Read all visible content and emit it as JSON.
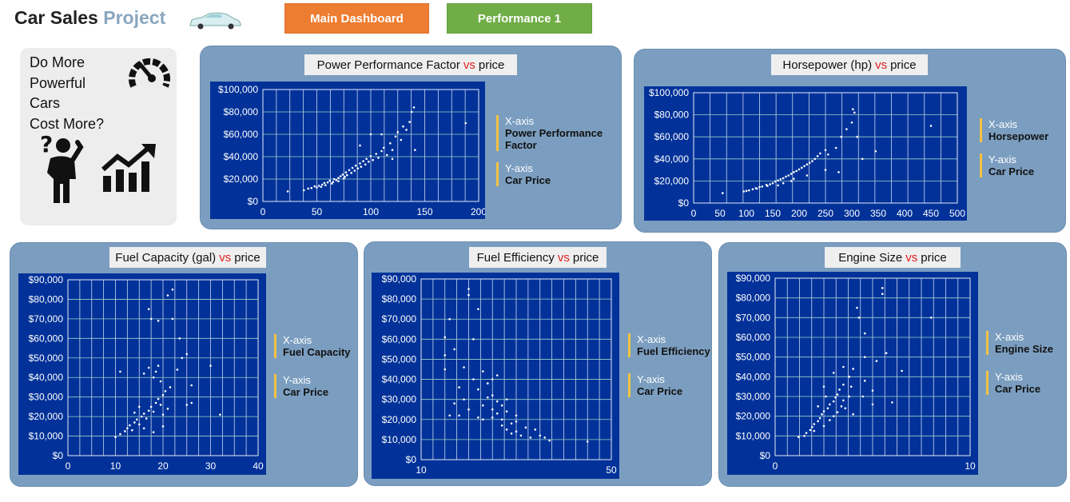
{
  "header": {
    "title_part1": "Car Sales",
    "title_part2": "Project",
    "car_icon": "car-icon",
    "nav": [
      {
        "label": "Main Dashboard",
        "color": "#ed7d31"
      },
      {
        "label": "Performance 1",
        "color": "#70ad47"
      }
    ]
  },
  "question": {
    "lines": [
      "Do More",
      "Powerful Cars",
      "Cost More?"
    ],
    "icons": [
      "speedometer-icon",
      "confused-person-icon",
      "growth-chart-icon"
    ]
  },
  "legend_labels": {
    "x": "X-axis",
    "y": "Y-axis",
    "y_value": "Car Price"
  },
  "charts": [
    {
      "title_left": "Power Performance Factor",
      "vs": "vs",
      "title_right": "price",
      "x_value": "Power Performance Factor"
    },
    {
      "title_left": "Horsepower (hp)",
      "vs": "vs",
      "title_right": "price",
      "x_value": "Horsepower"
    },
    {
      "title_left": "Fuel Capacity (gal)",
      "vs": "vs",
      "title_right": "price",
      "x_value": "Fuel Capacity"
    },
    {
      "title_left": "Fuel Efficiency",
      "vs": "vs",
      "title_right": "price",
      "x_value": "Fuel Efficiency"
    },
    {
      "title_left": "Engine Size",
      "vs": "vs",
      "title_right": "price",
      "x_value": "Engine Size"
    }
  ],
  "chart_data": [
    {
      "type": "scatter",
      "title": "Power Performance Factor vs price",
      "xlim": [
        0,
        200
      ],
      "ylim": [
        0,
        100000
      ],
      "x_ticks": [
        0,
        50,
        100,
        150,
        200
      ],
      "y_ticks": [
        0,
        20000,
        40000,
        60000,
        80000,
        100000
      ],
      "y_tick_labels": [
        "$0",
        "$20,000",
        "$40,000",
        "$60,000",
        "$80,000",
        "$100,000"
      ],
      "grid": true,
      "points": [
        [
          23,
          9000
        ],
        [
          38,
          10000
        ],
        [
          42,
          11500
        ],
        [
          45,
          12000
        ],
        [
          48,
          13500
        ],
        [
          50,
          12500
        ],
        [
          52,
          14000
        ],
        [
          55,
          15000
        ],
        [
          57,
          16500
        ],
        [
          60,
          17000
        ],
        [
          62,
          18500
        ],
        [
          65,
          17500
        ],
        [
          66,
          20000
        ],
        [
          68,
          19000
        ],
        [
          70,
          21000
        ],
        [
          72,
          22500
        ],
        [
          74,
          24000
        ],
        [
          75,
          20500
        ],
        [
          77,
          26000
        ],
        [
          78,
          23500
        ],
        [
          80,
          28000
        ],
        [
          82,
          25500
        ],
        [
          83,
          30000
        ],
        [
          85,
          27500
        ],
        [
          86,
          32000
        ],
        [
          88,
          29500
        ],
        [
          90,
          34000
        ],
        [
          91,
          31000
        ],
        [
          93,
          36000
        ],
        [
          95,
          33000
        ],
        [
          96,
          38000
        ],
        [
          98,
          35500
        ],
        [
          100,
          40500
        ],
        [
          102,
          37000
        ],
        [
          105,
          42500
        ],
        [
          107,
          39000
        ],
        [
          110,
          45000
        ],
        [
          112,
          48000
        ],
        [
          115,
          41500
        ],
        [
          118,
          52000
        ],
        [
          120,
          46000
        ],
        [
          123,
          58000
        ],
        [
          125,
          62000
        ],
        [
          128,
          55000
        ],
        [
          130,
          67000
        ],
        [
          133,
          64000
        ],
        [
          136,
          71000
        ],
        [
          138,
          80000
        ],
        [
          140,
          84000
        ],
        [
          141,
          46000
        ],
        [
          188,
          70000
        ],
        [
          100,
          60000
        ],
        [
          110,
          60000
        ],
        [
          90,
          50000
        ],
        [
          120,
          38000
        ],
        [
          76,
          22000
        ],
        [
          70,
          18000
        ],
        [
          64,
          16000
        ],
        [
          58,
          14500
        ],
        [
          54,
          13000
        ]
      ]
    },
    {
      "type": "scatter",
      "title": "Horsepower (hp) vs price",
      "xlim": [
        0,
        500
      ],
      "ylim": [
        0,
        100000
      ],
      "x_ticks": [
        0,
        50,
        100,
        150,
        200,
        250,
        300,
        350,
        400,
        450,
        500
      ],
      "y_ticks": [
        0,
        20000,
        40000,
        60000,
        80000,
        100000
      ],
      "y_tick_labels": [
        "$0",
        "$20,000",
        "$40,000",
        "$60,000",
        "$80,000",
        "$100,000"
      ],
      "grid": true,
      "points": [
        [
          55,
          9000
        ],
        [
          95,
          10500
        ],
        [
          105,
          11500
        ],
        [
          112,
          12500
        ],
        [
          118,
          13500
        ],
        [
          125,
          14500
        ],
        [
          130,
          15000
        ],
        [
          138,
          16500
        ],
        [
          145,
          17000
        ],
        [
          150,
          18000
        ],
        [
          155,
          19500
        ],
        [
          160,
          20500
        ],
        [
          165,
          21500
        ],
        [
          170,
          22500
        ],
        [
          175,
          24000
        ],
        [
          180,
          25000
        ],
        [
          185,
          26500
        ],
        [
          190,
          28000
        ],
        [
          195,
          29000
        ],
        [
          200,
          30500
        ],
        [
          205,
          32000
        ],
        [
          210,
          33500
        ],
        [
          215,
          35000
        ],
        [
          220,
          36500
        ],
        [
          225,
          38000
        ],
        [
          230,
          40000
        ],
        [
          235,
          42500
        ],
        [
          240,
          45000
        ],
        [
          250,
          48000
        ],
        [
          255,
          44000
        ],
        [
          270,
          50000
        ],
        [
          280,
          60000
        ],
        [
          290,
          67000
        ],
        [
          300,
          73000
        ],
        [
          302,
          85000
        ],
        [
          305,
          82000
        ],
        [
          310,
          60000
        ],
        [
          320,
          40000
        ],
        [
          345,
          47000
        ],
        [
          450,
          70000
        ],
        [
          275,
          28000
        ],
        [
          250,
          30000
        ],
        [
          215,
          25000
        ],
        [
          190,
          22000
        ],
        [
          170,
          18000
        ],
        [
          140,
          15500
        ],
        [
          120,
          13000
        ],
        [
          100,
          11000
        ],
        [
          160,
          16000
        ],
        [
          185,
          20000
        ]
      ]
    },
    {
      "type": "scatter",
      "title": "Fuel Capacity (gal) vs price",
      "xlim": [
        0,
        40
      ],
      "ylim": [
        0,
        90000
      ],
      "x_ticks": [
        0,
        10,
        20,
        30,
        40
      ],
      "y_ticks": [
        0,
        10000,
        20000,
        30000,
        40000,
        50000,
        60000,
        70000,
        80000,
        90000
      ],
      "y_tick_labels": [
        "$0",
        "$10,000",
        "$20,000",
        "$30,000",
        "$40,000",
        "$50,000",
        "$60,000",
        "$70,000",
        "$80,000",
        "$90,000"
      ],
      "grid": true,
      "points": [
        [
          10,
          9500
        ],
        [
          11,
          11000
        ],
        [
          12,
          12500
        ],
        [
          12.5,
          14000
        ],
        [
          13,
          15500
        ],
        [
          13.5,
          13000
        ],
        [
          14,
          17000
        ],
        [
          14.5,
          18500
        ],
        [
          15,
          16000
        ],
        [
          15.5,
          20000
        ],
        [
          16,
          21500
        ],
        [
          16.5,
          19000
        ],
        [
          17,
          23000
        ],
        [
          17.5,
          25000
        ],
        [
          18,
          22500
        ],
        [
          18.5,
          27000
        ],
        [
          19,
          29000
        ],
        [
          19.5,
          26000
        ],
        [
          20,
          31000
        ],
        [
          20.5,
          33000
        ],
        [
          21,
          24000
        ],
        [
          21.5,
          35000
        ],
        [
          18,
          40000
        ],
        [
          18.5,
          43000
        ],
        [
          19,
          46000
        ],
        [
          19.5,
          38000
        ],
        [
          17,
          45000
        ],
        [
          16,
          42000
        ],
        [
          17,
          75000
        ],
        [
          17.5,
          70000
        ],
        [
          19,
          69000
        ],
        [
          21,
          82000
        ],
        [
          22,
          85000
        ],
        [
          23.5,
          60000
        ],
        [
          24,
          50000
        ],
        [
          25,
          52000
        ],
        [
          26,
          36000
        ],
        [
          26,
          27000
        ],
        [
          22,
          70000
        ],
        [
          30,
          46000
        ],
        [
          32,
          21000
        ],
        [
          11,
          43000
        ],
        [
          14,
          22000
        ],
        [
          15,
          25000
        ],
        [
          20,
          21000
        ],
        [
          20,
          15000
        ],
        [
          18,
          12000
        ],
        [
          16,
          14000
        ],
        [
          23,
          44000
        ],
        [
          25,
          26000
        ]
      ]
    },
    {
      "type": "scatter",
      "title": "Fuel Efficiency vs price",
      "xlim": [
        10,
        50
      ],
      "ylim": [
        0,
        90000
      ],
      "x_ticks": [
        10,
        20,
        30,
        40,
        50
      ],
      "x_tick_labels_shown": [
        "10",
        "50"
      ],
      "y_ticks": [
        0,
        10000,
        20000,
        30000,
        40000,
        50000,
        60000,
        70000,
        80000,
        90000
      ],
      "y_tick_labels": [
        "$0",
        "$10,000",
        "$20,000",
        "$30,000",
        "$40,000",
        "$50,000",
        "$60,000",
        "$70,000",
        "$80,000",
        "$90,000"
      ],
      "grid": true,
      "points": [
        [
          15,
          61000
        ],
        [
          15,
          52000
        ],
        [
          15,
          45000
        ],
        [
          16,
          70000
        ],
        [
          17,
          55000
        ],
        [
          18,
          36000
        ],
        [
          19,
          30000
        ],
        [
          20,
          85000
        ],
        [
          20,
          82000
        ],
        [
          21,
          60000
        ],
        [
          21,
          40000
        ],
        [
          22,
          75000
        ],
        [
          22,
          35000
        ],
        [
          23,
          27000
        ],
        [
          23,
          44000
        ],
        [
          24,
          38000
        ],
        [
          24,
          31000
        ],
        [
          25,
          32000
        ],
        [
          25,
          25000
        ],
        [
          25,
          21000
        ],
        [
          26,
          29000
        ],
        [
          26,
          23000
        ],
        [
          26,
          42000
        ],
        [
          27,
          27000
        ],
        [
          27,
          20000
        ],
        [
          27,
          17000
        ],
        [
          28,
          24000
        ],
        [
          28,
          15000
        ],
        [
          29,
          18000
        ],
        [
          29,
          13000
        ],
        [
          30,
          19000
        ],
        [
          30,
          14000
        ],
        [
          31,
          12000
        ],
        [
          32,
          16000
        ],
        [
          33,
          11000
        ],
        [
          34,
          15000
        ],
        [
          35,
          12000
        ],
        [
          36,
          11000
        ],
        [
          37,
          9500
        ],
        [
          45,
          9000
        ],
        [
          20,
          25000
        ],
        [
          18,
          22000
        ],
        [
          22,
          21000
        ],
        [
          17,
          28000
        ],
        [
          19,
          46000
        ],
        [
          23,
          20000
        ],
        [
          30,
          22000
        ],
        [
          28,
          30000
        ],
        [
          25,
          40000
        ],
        [
          16,
          22000
        ]
      ]
    },
    {
      "type": "scatter",
      "title": "Engine Size vs price",
      "xlim": [
        0,
        10
      ],
      "ylim": [
        0,
        90000
      ],
      "x_ticks": [
        0,
        1,
        2,
        3,
        4,
        5,
        6,
        7,
        8,
        9,
        10
      ],
      "x_tick_labels_shown": [
        "0",
        "10"
      ],
      "y_ticks": [
        0,
        10000,
        20000,
        30000,
        40000,
        50000,
        60000,
        70000,
        80000,
        90000
      ],
      "y_tick_labels": [
        "$0",
        "$10,000",
        "$20,000",
        "$30,000",
        "$40,000",
        "$50,000",
        "$60,000",
        "$70,000",
        "$80,000",
        "$90,000"
      ],
      "grid": true,
      "points": [
        [
          1.2,
          9500
        ],
        [
          1.5,
          10000
        ],
        [
          1.6,
          11500
        ],
        [
          1.8,
          13000
        ],
        [
          1.9,
          14500
        ],
        [
          2.0,
          12500
        ],
        [
          2.0,
          16000
        ],
        [
          2.2,
          17500
        ],
        [
          2.3,
          19000
        ],
        [
          2.4,
          21000
        ],
        [
          2.5,
          22500
        ],
        [
          2.5,
          15000
        ],
        [
          2.7,
          24000
        ],
        [
          2.8,
          26000
        ],
        [
          3.0,
          27500
        ],
        [
          3.0,
          20000
        ],
        [
          3.1,
          29500
        ],
        [
          3.2,
          31000
        ],
        [
          3.3,
          33500
        ],
        [
          3.4,
          25000
        ],
        [
          3.5,
          36000
        ],
        [
          3.5,
          28000
        ],
        [
          3.8,
          30000
        ],
        [
          3.8,
          40000
        ],
        [
          4.0,
          44000
        ],
        [
          3.0,
          42000
        ],
        [
          2.5,
          35000
        ],
        [
          3.5,
          45000
        ],
        [
          4.6,
          62000
        ],
        [
          4.6,
          50000
        ],
        [
          4.6,
          38000
        ],
        [
          4.2,
          75000
        ],
        [
          4.3,
          70000
        ],
        [
          5.0,
          33000
        ],
        [
          5.0,
          26000
        ],
        [
          5.2,
          48000
        ],
        [
          5.5,
          85000
        ],
        [
          5.5,
          82000
        ],
        [
          5.7,
          52000
        ],
        [
          6.0,
          27000
        ],
        [
          6.5,
          43000
        ],
        [
          8.0,
          70000
        ],
        [
          2.2,
          25000
        ],
        [
          2.8,
          18000
        ],
        [
          3.2,
          22000
        ],
        [
          3.9,
          35000
        ],
        [
          4.0,
          21000
        ],
        [
          4.5,
          30000
        ],
        [
          2.6,
          30000
        ],
        [
          3.6,
          24000
        ]
      ]
    }
  ]
}
